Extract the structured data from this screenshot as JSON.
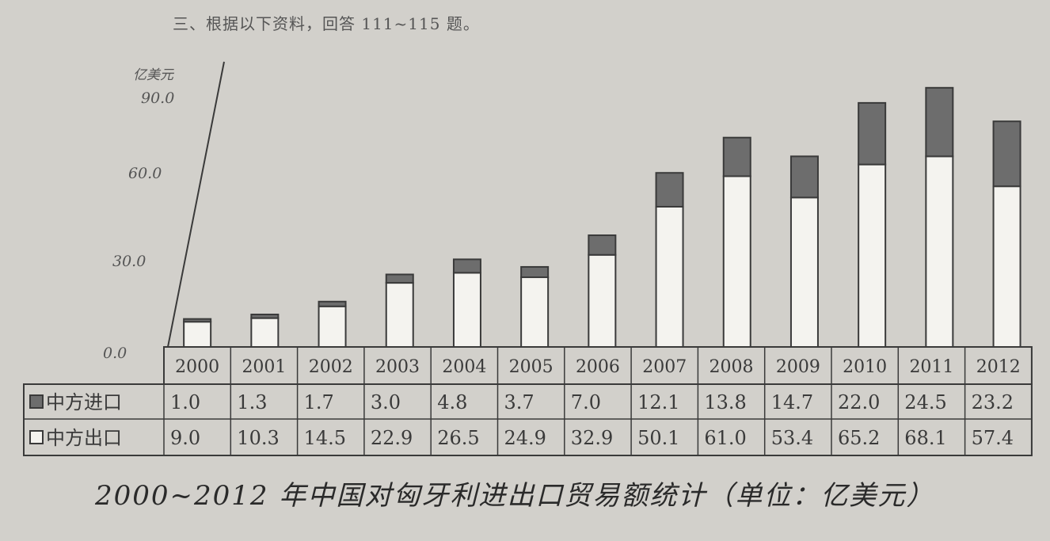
{
  "header": {
    "text": "三、根据以下资料，回答 111~115 题。"
  },
  "caption": "2000~2012 年中国对匈牙利进出口贸易额统计（单位：亿美元）",
  "colors": {
    "import": "#6d6d6d",
    "export": "#f4f3ef",
    "ink": "#3a3a3a",
    "paper": "#d2d0cb"
  },
  "chart_data": {
    "type": "bar",
    "stacked": true,
    "ylabel": "亿美元",
    "ylim": [
      0,
      90
    ],
    "yticks": [
      "0.0",
      "30.0",
      "60.0",
      "90.0"
    ],
    "categories": [
      "2000",
      "2001",
      "2002",
      "2003",
      "2004",
      "2005",
      "2006",
      "2007",
      "2008",
      "2009",
      "2010",
      "2011",
      "2012"
    ],
    "series": [
      {
        "name": "中方出口",
        "values": [
          9.0,
          10.3,
          14.5,
          22.9,
          26.5,
          24.9,
          32.9,
          50.1,
          61.0,
          53.4,
          65.2,
          68.1,
          57.4
        ],
        "labels": [
          "9.0",
          "10.3",
          "14.5",
          "22.9",
          "26.5",
          "24.9",
          "32.9",
          "50.1",
          "61.0",
          "53.4",
          "65.2",
          "68.1",
          "57.4"
        ]
      },
      {
        "name": "中方进口",
        "values": [
          1.0,
          1.3,
          1.7,
          3.0,
          4.8,
          3.7,
          7.0,
          12.1,
          13.8,
          14.7,
          22.0,
          24.5,
          23.2
        ],
        "labels": [
          "1.0",
          "1.3",
          "1.7",
          "3.0",
          "4.8",
          "3.7",
          "7.0",
          "12.1",
          "13.8",
          "14.7",
          "22.0",
          "24.5",
          "23.2"
        ]
      }
    ],
    "table_rows": [
      {
        "legend": "中方进口",
        "series_index": 1
      },
      {
        "legend": "中方出口",
        "series_index": 0
      }
    ]
  }
}
